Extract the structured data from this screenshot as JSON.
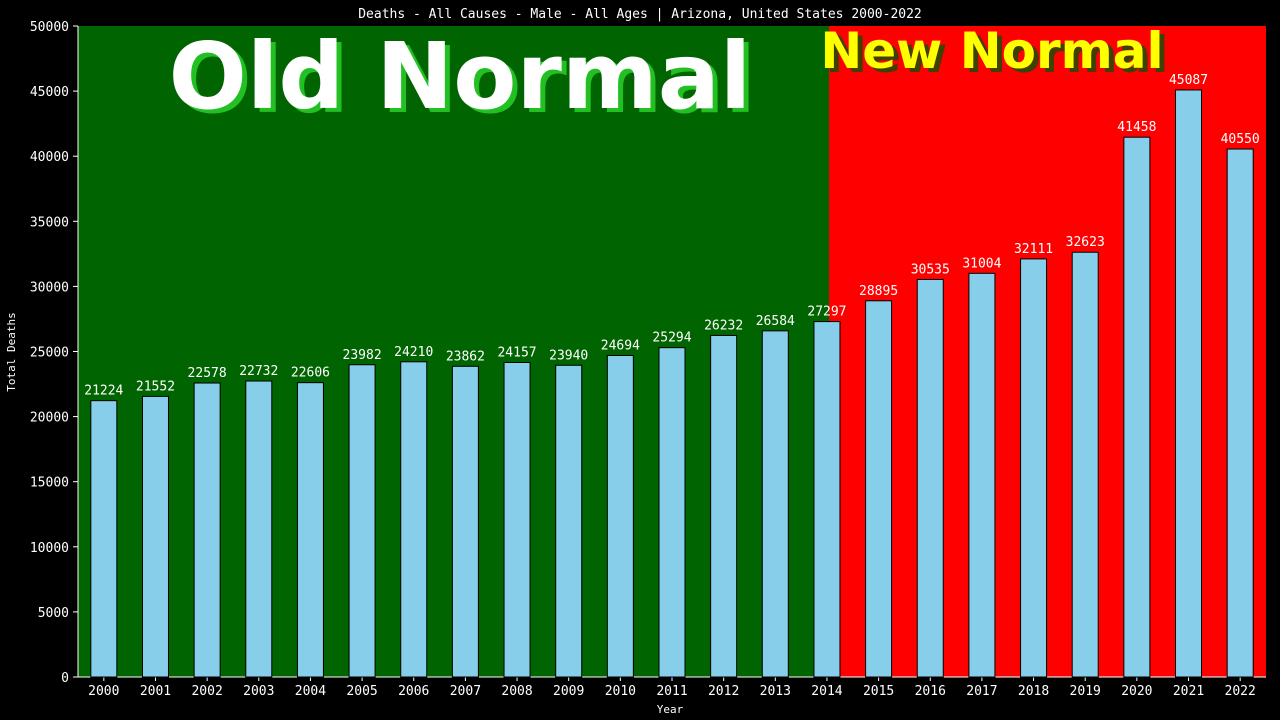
{
  "chart_data": {
    "type": "bar",
    "title": "Deaths - All Causes - Male - All Ages | Arizona, United States 2000-2022",
    "x_label": "Year",
    "y_label": "Total Deaths",
    "annotations": [
      {
        "text": "Old Normal",
        "background": "#006400",
        "color": "#ffffff",
        "shadow": "#22c022"
      },
      {
        "text": "New Normal",
        "background": "#ff0000",
        "color": "#ffff00",
        "shadow": "#404000"
      }
    ],
    "categories": [
      "2000",
      "2001",
      "2002",
      "2003",
      "2004",
      "2005",
      "2006",
      "2007",
      "2008",
      "2009",
      "2010",
      "2011",
      "2012",
      "2013",
      "2014",
      "2015",
      "2016",
      "2017",
      "2018",
      "2019",
      "2020",
      "2021",
      "2022"
    ],
    "values": [
      21224,
      21552,
      22578,
      22732,
      22606,
      23982,
      24210,
      23862,
      24157,
      23940,
      24694,
      25294,
      26232,
      26584,
      27297,
      28895,
      30535,
      31004,
      32111,
      32623,
      41458,
      45087,
      40550
    ],
    "color": "#87ceeb",
    "ylim": [
      0,
      50000
    ],
    "yticks": [
      0,
      5000,
      10000,
      15000,
      20000,
      25000,
      30000,
      35000,
      40000,
      45000,
      50000
    ]
  }
}
